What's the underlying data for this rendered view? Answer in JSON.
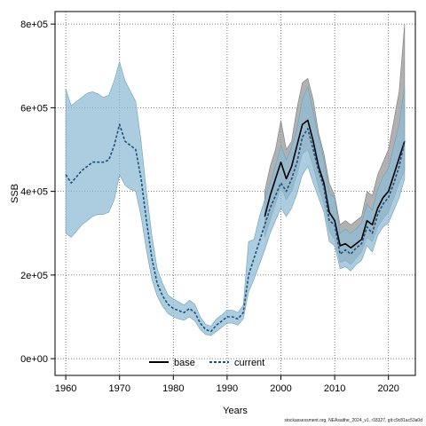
{
  "chart_data": {
    "type": "area",
    "xlabel": "Years",
    "ylabel": "SSB",
    "xlim": [
      1958,
      2025
    ],
    "ylim": [
      -40000,
      830000
    ],
    "xticks": [
      1960,
      1970,
      1980,
      1990,
      2000,
      2010,
      2020
    ],
    "yticks": [
      0,
      200000,
      400000,
      600000,
      800000
    ],
    "ytick_labels": [
      "0e+00",
      "2e+05",
      "4e+05",
      "6e+05",
      "8e+05"
    ],
    "grid": true,
    "legend": {
      "placement": "bottom-center",
      "entries": [
        "base",
        "current"
      ]
    },
    "colors": {
      "base": "#000000",
      "base_band": "#9e9e9e",
      "current": "#1f4e79",
      "current_band": "#8fbcd4",
      "overlap": "#6f95a8"
    },
    "series": [
      {
        "name": "base",
        "x": [
          1960,
          1961,
          1962,
          1963,
          1964,
          1965,
          1966,
          1967,
          1968,
          1969,
          1970,
          1971,
          1972,
          1973,
          1974,
          1975,
          1976,
          1977,
          1978,
          1979,
          1980,
          1981,
          1982,
          1983,
          1984,
          1985,
          1986,
          1987,
          1988,
          1989,
          1990,
          1991,
          1992,
          1993,
          1994,
          1995,
          1996,
          1997,
          1998,
          1999,
          2000,
          2001,
          2002,
          2003,
          2004,
          2005,
          2006,
          2007,
          2008,
          2009,
          2010,
          2011,
          2012,
          2013,
          2014,
          2015,
          2016,
          2017,
          2018,
          2019,
          2020,
          2021,
          2022,
          2023
        ],
        "y": [
          null,
          null,
          null,
          null,
          null,
          null,
          null,
          null,
          null,
          null,
          null,
          null,
          null,
          null,
          null,
          null,
          null,
          null,
          null,
          null,
          null,
          null,
          null,
          null,
          null,
          null,
          null,
          null,
          null,
          null,
          null,
          null,
          null,
          null,
          null,
          null,
          null,
          340000,
          390000,
          430000,
          470000,
          430000,
          460000,
          510000,
          560000,
          570000,
          520000,
          460000,
          420000,
          350000,
          330000,
          270000,
          275000,
          265000,
          275000,
          285000,
          330000,
          320000,
          360000,
          385000,
          400000,
          440000,
          480000,
          520000
        ],
        "lower": [
          null,
          null,
          null,
          null,
          null,
          null,
          null,
          null,
          null,
          null,
          null,
          null,
          null,
          null,
          null,
          null,
          null,
          null,
          null,
          null,
          null,
          null,
          null,
          null,
          null,
          null,
          null,
          null,
          null,
          null,
          null,
          null,
          null,
          null,
          null,
          null,
          null,
          290000,
          330000,
          370000,
          410000,
          380000,
          400000,
          440000,
          490000,
          500000,
          460000,
          410000,
          370000,
          305000,
          285000,
          230000,
          235000,
          225000,
          240000,
          255000,
          290000,
          280000,
          315000,
          335000,
          350000,
          385000,
          420000,
          450000
        ],
        "upper": [
          null,
          null,
          null,
          null,
          null,
          null,
          null,
          null,
          null,
          null,
          null,
          null,
          null,
          null,
          null,
          null,
          null,
          null,
          null,
          null,
          null,
          null,
          null,
          null,
          null,
          null,
          null,
          null,
          null,
          null,
          null,
          null,
          null,
          null,
          null,
          null,
          null,
          400000,
          460000,
          500000,
          570000,
          500000,
          520000,
          600000,
          660000,
          670000,
          620000,
          540000,
          490000,
          420000,
          390000,
          320000,
          330000,
          320000,
          330000,
          340000,
          400000,
          390000,
          440000,
          470000,
          500000,
          570000,
          640000,
          800000
        ]
      },
      {
        "name": "current",
        "x": [
          1960,
          1961,
          1962,
          1963,
          1964,
          1965,
          1966,
          1967,
          1968,
          1969,
          1970,
          1971,
          1972,
          1973,
          1974,
          1975,
          1976,
          1977,
          1978,
          1979,
          1980,
          1981,
          1982,
          1983,
          1984,
          1985,
          1986,
          1987,
          1988,
          1989,
          1990,
          1991,
          1992,
          1993,
          1994,
          1995,
          1996,
          1997,
          1998,
          1999,
          2000,
          2001,
          2002,
          2003,
          2004,
          2005,
          2006,
          2007,
          2008,
          2009,
          2010,
          2011,
          2012,
          2013,
          2014,
          2015,
          2016,
          2017,
          2018,
          2019,
          2020,
          2021,
          2022,
          2023
        ],
        "y": [
          440000,
          420000,
          435000,
          450000,
          460000,
          470000,
          470000,
          470000,
          475000,
          510000,
          560000,
          520000,
          510000,
          500000,
          430000,
          330000,
          240000,
          180000,
          150000,
          130000,
          120000,
          115000,
          110000,
          120000,
          110000,
          85000,
          70000,
          65000,
          80000,
          90000,
          100000,
          100000,
          95000,
          110000,
          200000,
          240000,
          280000,
          320000,
          360000,
          390000,
          420000,
          400000,
          430000,
          470000,
          530000,
          550000,
          500000,
          450000,
          410000,
          330000,
          320000,
          250000,
          260000,
          250000,
          265000,
          275000,
          315000,
          300000,
          345000,
          370000,
          385000,
          420000,
          460000,
          520000
        ],
        "lower": [
          300000,
          290000,
          305000,
          320000,
          330000,
          340000,
          345000,
          345000,
          350000,
          380000,
          440000,
          415000,
          405000,
          400000,
          340000,
          260000,
          190000,
          150000,
          125000,
          108000,
          100000,
          95000,
          92000,
          100000,
          90000,
          70000,
          58000,
          55000,
          65000,
          75000,
          85000,
          85000,
          80000,
          95000,
          160000,
          190000,
          225000,
          260000,
          300000,
          330000,
          360000,
          340000,
          360000,
          395000,
          440000,
          460000,
          420000,
          385000,
          350000,
          280000,
          270000,
          215000,
          220000,
          210000,
          225000,
          235000,
          270000,
          255000,
          295000,
          315000,
          325000,
          355000,
          385000,
          430000
        ],
        "upper": [
          645000,
          605000,
          615000,
          625000,
          635000,
          638000,
          633000,
          625000,
          630000,
          665000,
          710000,
          665000,
          640000,
          615000,
          520000,
          400000,
          295000,
          215000,
          180000,
          152000,
          143000,
          136000,
          128000,
          140000,
          130000,
          100000,
          82000,
          78000,
          95000,
          105000,
          116000,
          116000,
          110000,
          128000,
          280000,
          285000,
          340000,
          380000,
          420000,
          460000,
          510000,
          475000,
          505000,
          550000,
          620000,
          650000,
          590000,
          530000,
          475000,
          395000,
          385000,
          300000,
          310000,
          300000,
          310000,
          325000,
          370000,
          355000,
          405000,
          435000,
          455000,
          510000,
          560000,
          650000
        ]
      }
    ]
  },
  "footer": "stockassessment.org, NEAsaithe_2024_v1, r18327, git:c9c81ac53a0d"
}
